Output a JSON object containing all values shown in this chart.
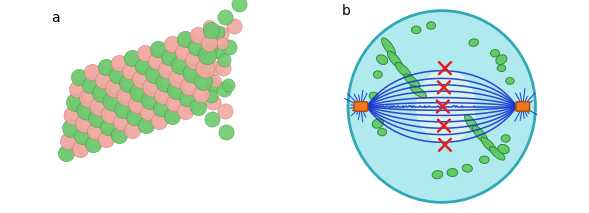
{
  "bg_color": "#ffffff",
  "label_a": "a",
  "label_b": "b",
  "green_color": "#6dc96d",
  "pink_color": "#f0a8a0",
  "orange_color": "#f07820",
  "blue_color": "#1a35cc",
  "cell_fill": "#b0eaee",
  "cell_edge": "#30a8b8",
  "yellow_glow": "#ffffcc",
  "mt_green": "#5cc85c",
  "mt_dark_green": "#2a8030",
  "chrom_color": "#e02020"
}
